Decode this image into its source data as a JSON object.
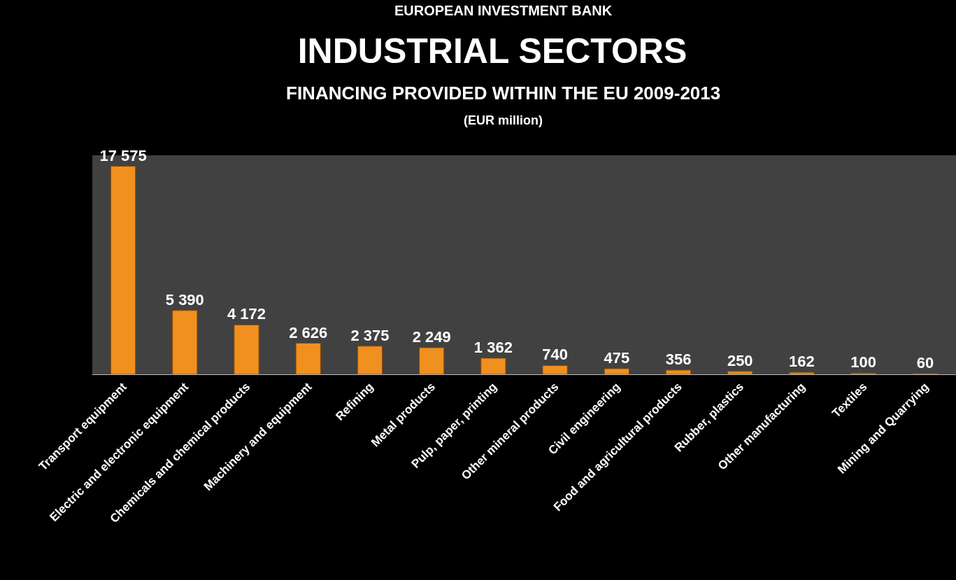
{
  "chart_data": {
    "type": "bar",
    "title": "INDUSTRIAL SECTORS",
    "subtitle": "FINANCING PROVIDED WITHIN THE EU 2009-2013",
    "annotations": [
      "EUROPEAN INVESTMENT BANK",
      "(EUR million)"
    ],
    "categories": [
      "Transport equipment",
      "Electric and electronic equipment",
      "Chemicals and chemical products",
      "Machinery and equipment",
      "Refining",
      "Metal products",
      "Pulp, paper, printing",
      "Other mineral products",
      "Civil engineering",
      "Food and agricultural products",
      "Rubber, plastics",
      "Other manufacturing",
      "Textiles",
      "Mining and Quarrying"
    ],
    "values": [
      17575,
      5390,
      4172,
      2626,
      2375,
      2249,
      1362,
      740,
      475,
      356,
      250,
      162,
      100,
      60
    ],
    "value_labels": [
      "17 575",
      "5 390",
      "4 172",
      "2 626",
      "2 375",
      "2 249",
      "1 362",
      "740",
      "475",
      "356",
      "250",
      "162",
      "100",
      "60"
    ],
    "color": "#f0901e"
  }
}
